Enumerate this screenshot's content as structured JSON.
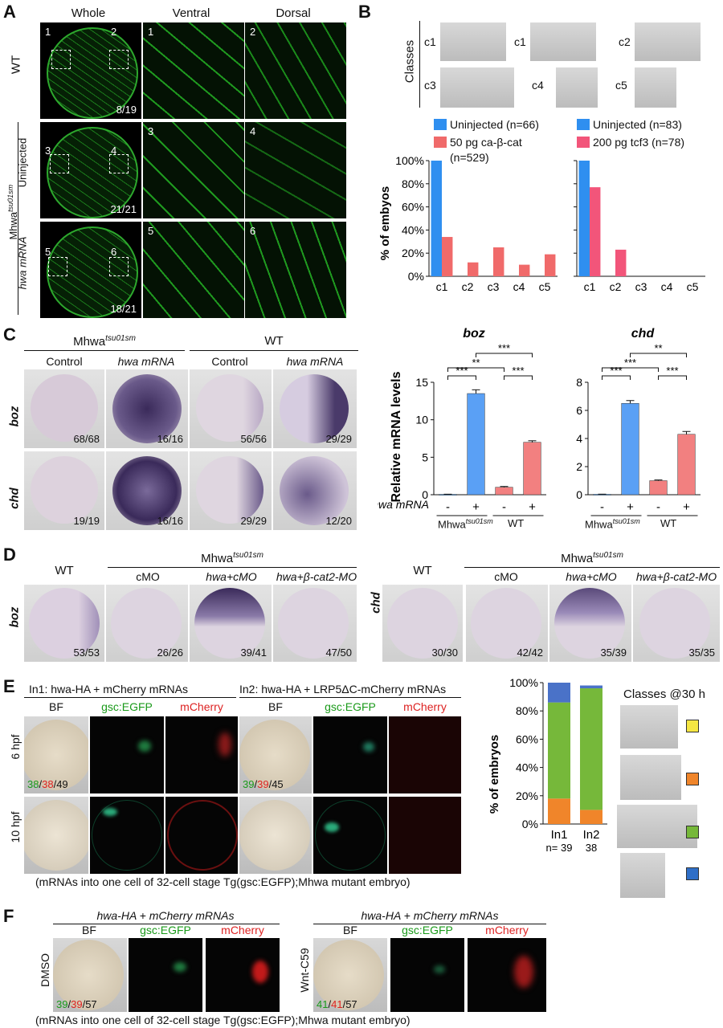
{
  "panels": {
    "A": "A",
    "B": "B",
    "C": "C",
    "D": "D",
    "E": "E",
    "F": "F"
  },
  "panelA": {
    "col_whole": "Whole",
    "col_ventral": "Ventral",
    "col_dorsal": "Dorsal",
    "row_wt": "WT",
    "row_uninj": "Uninjected",
    "row_hwa": "hwa mRNA",
    "group_label": "Mhwa",
    "group_sup": "tsu01sm",
    "n1": "1",
    "n2": "2",
    "n3": "3",
    "n4": "4",
    "n5": "5",
    "n6": "6",
    "c1": "8/19",
    "c2": "21/21",
    "c3": "18/21"
  },
  "panelB": {
    "classes_label": "Classes",
    "class_names": [
      "c1",
      "c1",
      "c2",
      "c3",
      "c4",
      "c5"
    ],
    "ylabel": "% of embyos",
    "leg1a": "Uninjected (n=66)",
    "leg1b": "50 pg ca-β-cat",
    "leg1c": "(n=529)",
    "leg2a": "Uninjected (n=83)",
    "leg2b": "200 pg tcf3 (n=78)"
  },
  "panelC": {
    "group1": "Mhwa",
    "group1_sup": "tsu01sm",
    "group2": "WT",
    "col1": "Control",
    "col2": "hwa mRNA",
    "col3": "Control",
    "col4": "hwa mRNA",
    "row1": "boz",
    "row2": "chd",
    "counts_boz": [
      "68/68",
      "16/16",
      "56/56",
      "29/29"
    ],
    "counts_chd": [
      "19/19",
      "16/16",
      "29/29",
      "12/20"
    ],
    "chart_title1": "boz",
    "chart_title2": "chd",
    "ylabel": "Relative mRNA levels",
    "xrow_label": "hwa mRNA",
    "x_signs": [
      "-",
      "+",
      "-",
      "+"
    ],
    "x_group1": "Mhwa",
    "x_group1_sup": "tsu01sm",
    "x_group2": "WT",
    "sig": [
      "***",
      "**",
      "***",
      "***"
    ],
    "sig2": [
      "***",
      "***",
      "***",
      "**"
    ]
  },
  "panelD": {
    "wt": "WT",
    "group": "Mhwa",
    "group_sup": "tsu01sm",
    "col_cmo": "cMO",
    "col_hwa": "hwa+cMO",
    "col_bcat": "hwa+β-cat2-MO",
    "row_boz": "boz",
    "row_chd": "chd",
    "counts_boz": [
      "53/53",
      "26/26",
      "39/41",
      "47/50"
    ],
    "counts_chd": [
      "30/30",
      "42/42",
      "35/39",
      "35/35"
    ]
  },
  "panelE": {
    "in1_title": "In1: hwa-HA + mCherry mRNAs",
    "in2_title": "In2: hwa-HA + LRP5ΔC-mCherry  mRNAs",
    "bf": "BF",
    "gsc": "gsc:EGFP",
    "mch": "mCherry",
    "row1": "6 hpf",
    "row2": "10 hpf",
    "in1_counts": [
      "38",
      "38",
      "49"
    ],
    "in2_counts": [
      "39",
      "39",
      "45"
    ],
    "caption": "(mRNAs into one cell of 32-cell stage Tg(gsc:EGFP);Mhwa mutant embryo)",
    "ylabel": "% of embryos",
    "classes_title": "Classes @30 h",
    "x_labels": [
      "In1",
      "In2"
    ],
    "n_labels": [
      "n= 39",
      "38"
    ]
  },
  "panelF": {
    "title": "hwa-HA + mCherry mRNAs",
    "bf": "BF",
    "gsc": "gsc:EGFP",
    "mch": "mCherry",
    "row1": "DMSO",
    "row2": "Wnt-C59",
    "dmso_counts": [
      "39",
      "39",
      "57"
    ],
    "wnt_counts": [
      "41",
      "41",
      "57"
    ],
    "caption": "(mRNAs into one cell of 32-cell stage Tg(gsc:EGFP);Mhwa mutant embryo)"
  },
  "chart_data": [
    {
      "type": "bar",
      "title": "",
      "ylabel": "% of embyos",
      "categories": [
        "c1",
        "c2",
        "c3",
        "c4",
        "c5"
      ],
      "series": [
        {
          "name": "Uninjected (n=66)",
          "color": "#2f8ff0",
          "values": [
            100,
            0,
            0,
            0,
            0
          ]
        },
        {
          "name": "50 pg ca-β-cat (n=529)",
          "color": "#f06a6a",
          "values": [
            34,
            12,
            25,
            10,
            19
          ]
        }
      ],
      "ylim": [
        0,
        100
      ],
      "yticks": [
        0,
        20,
        40,
        60,
        80,
        100
      ],
      "ytick_labels": [
        "0%",
        "20%",
        "40%",
        "60%",
        "80%",
        "100%"
      ]
    },
    {
      "type": "bar",
      "title": "",
      "ylabel": "% of embyos",
      "categories": [
        "c1",
        "c2",
        "c3",
        "c4",
        "c5"
      ],
      "series": [
        {
          "name": "Uninjected (n=83)",
          "color": "#2f8ff0",
          "values": [
            100,
            0,
            0,
            0,
            0
          ]
        },
        {
          "name": "200 pg tcf3 (n=78)",
          "color": "#f2557a",
          "values": [
            77,
            23,
            0,
            0,
            0
          ]
        }
      ],
      "ylim": [
        0,
        100
      ]
    },
    {
      "type": "bar",
      "title": "boz",
      "ylabel": "Relative mRNA levels",
      "categories": [
        "- Mhwa",
        "+ Mhwa",
        "- WT",
        "+ WT"
      ],
      "values": [
        0.05,
        13.5,
        1.0,
        7.0
      ],
      "errors": [
        0.02,
        0.5,
        0.1,
        0.2
      ],
      "colors": [
        "#2f8ff0",
        "#5aa0f5",
        "#f28080",
        "#f28080"
      ],
      "ylim": [
        0,
        15
      ],
      "yticks": [
        0,
        5,
        10,
        15
      ]
    },
    {
      "type": "bar",
      "title": "chd",
      "ylabel": "",
      "categories": [
        "- Mhwa",
        "+ Mhwa",
        "- WT",
        "+ WT"
      ],
      "values": [
        0.03,
        6.5,
        1.0,
        4.3
      ],
      "errors": [
        0.01,
        0.2,
        0.05,
        0.2
      ],
      "colors": [
        "#2f8ff0",
        "#5aa0f5",
        "#f28080",
        "#f28080"
      ],
      "ylim": [
        0,
        8
      ],
      "yticks": [
        0,
        2,
        4,
        6,
        8
      ]
    },
    {
      "type": "bar",
      "title": "",
      "ylabel": "% of embryos",
      "categories": [
        "In1",
        "In2"
      ],
      "series": [
        {
          "name": "orange",
          "color": "#f0852a",
          "values": [
            18,
            10
          ]
        },
        {
          "name": "green",
          "color": "#76b83a",
          "values": [
            68,
            86
          ]
        },
        {
          "name": "blue",
          "color": "#4a72c8",
          "values": [
            14,
            2
          ]
        }
      ],
      "stacked": true,
      "ylim": [
        0,
        100
      ],
      "yticks": [
        0,
        20,
        40,
        60,
        80,
        100
      ],
      "ytick_labels": [
        "0%",
        "20%",
        "40%",
        "60%",
        "80%",
        "100%"
      ]
    }
  ]
}
